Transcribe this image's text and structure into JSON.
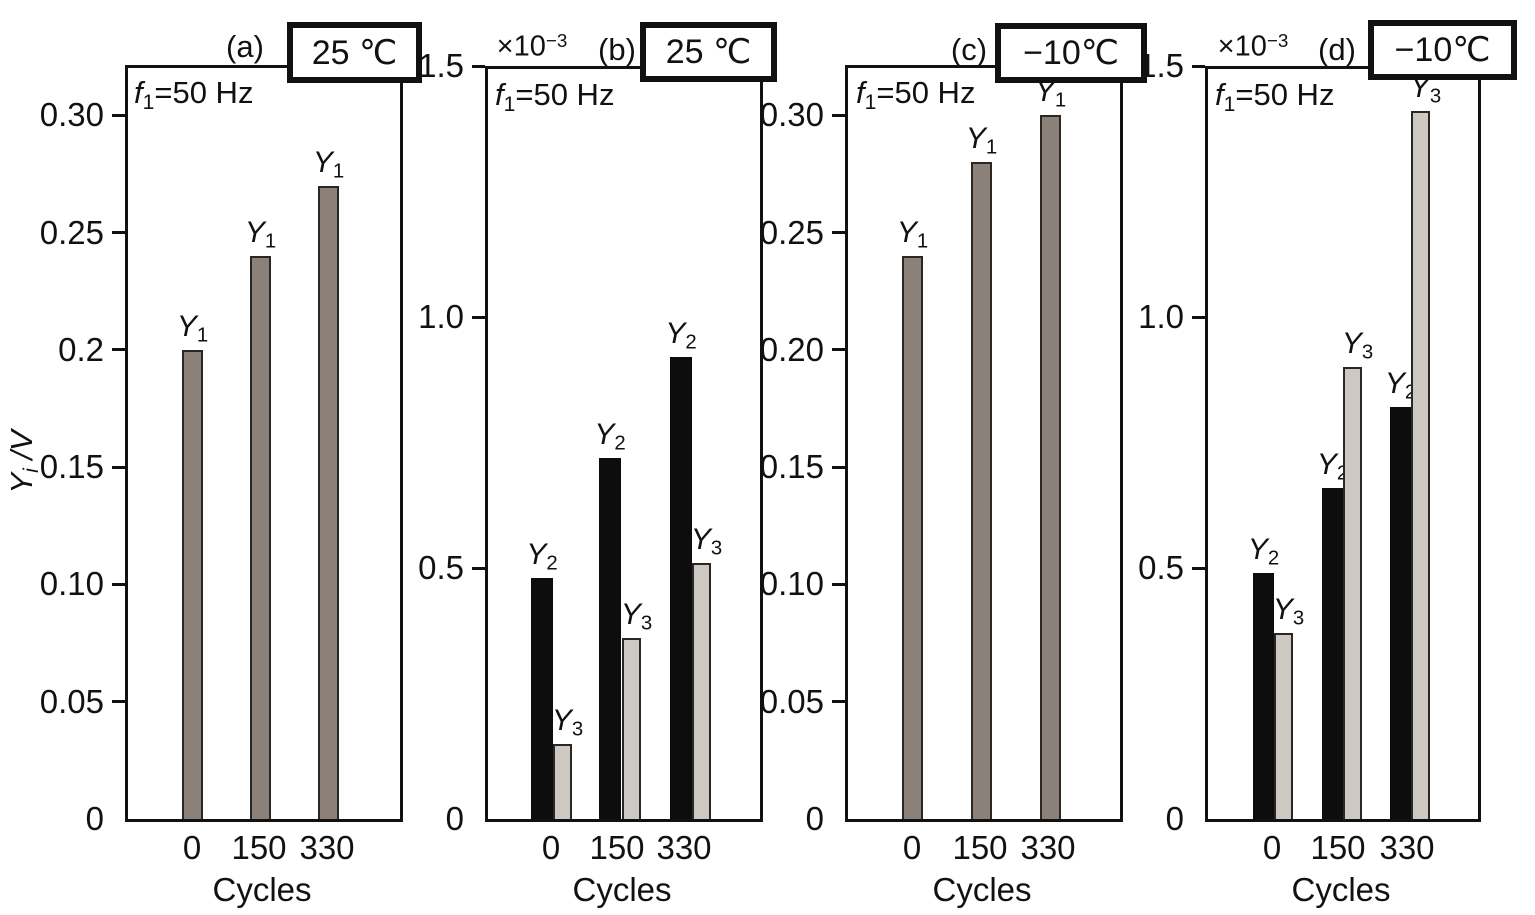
{
  "colors": {
    "axis": "#111111",
    "text": "#111111",
    "bar_gray": "#8B8178",
    "bar_black": "#0D0D0D",
    "bar_lightgray": "#CDC8C2",
    "bar_outline": "#2A2622",
    "background": "#FFFFFF"
  },
  "chart_data": [
    {
      "type": "bar",
      "panel_letter": "(a)",
      "temperature_label": "25 ℃",
      "scale_note": null,
      "frequency_note": {
        "sym": "f",
        "sub": "1",
        "rest": "=50 Hz"
      },
      "ylabel": {
        "base": "Y",
        "sub": "i",
        "rest": " /V"
      },
      "xlabel": "Cycles",
      "categories": [
        "0",
        "150",
        "330"
      ],
      "ytick_labels": [
        "0.30",
        "0.25",
        "0.2",
        "0.15",
        "0.10",
        "0.05",
        "0"
      ],
      "ytick_values": [
        0.3,
        0.25,
        0.2,
        0.15,
        0.1,
        0.05,
        0
      ],
      "ylim": [
        0,
        0.3215
      ],
      "grid": false,
      "series": [
        {
          "name": "Y1",
          "label": {
            "base": "Y",
            "sub": "1"
          },
          "color_key": "bar_gray",
          "values": [
            0.2,
            0.24,
            0.27
          ]
        }
      ]
    },
    {
      "type": "bar",
      "panel_letter": "(b)",
      "temperature_label": "25 ℃",
      "scale_note": {
        "base": "×10",
        "exp": "−3"
      },
      "frequency_note": {
        "sym": "f",
        "sub": "1",
        "rest": "=50 Hz"
      },
      "ylabel": null,
      "xlabel": "Cycles",
      "categories": [
        "0",
        "150",
        "330"
      ],
      "ytick_labels": [
        "1.5",
        "1.0",
        "0.5",
        "0"
      ],
      "ytick_values": [
        1.5,
        1.0,
        0.5,
        0
      ],
      "ylim": [
        0,
        1.5
      ],
      "grid": false,
      "series": [
        {
          "name": "Y2",
          "label": {
            "base": "Y",
            "sub": "2"
          },
          "color_key": "bar_black",
          "values": [
            0.48,
            0.72,
            0.92
          ]
        },
        {
          "name": "Y3",
          "label": {
            "base": "Y",
            "sub": "3"
          },
          "color_key": "bar_lightgray",
          "values": [
            0.15,
            0.36,
            0.51
          ]
        }
      ]
    },
    {
      "type": "bar",
      "panel_letter": "(c)",
      "temperature_label": "−10℃",
      "scale_note": null,
      "frequency_note": {
        "sym": "f",
        "sub": "1",
        "rest": "=50 Hz"
      },
      "ylabel": null,
      "xlabel": "Cycles",
      "categories": [
        "0",
        "150",
        "330"
      ],
      "ytick_labels": [
        "0.30",
        "0.25",
        "0.20",
        "0.15",
        "0.10",
        "0.05",
        "0"
      ],
      "ytick_values": [
        0.3,
        0.25,
        0.2,
        0.15,
        0.1,
        0.05,
        0
      ],
      "ylim": [
        0,
        0.3215
      ],
      "grid": false,
      "series": [
        {
          "name": "Y1",
          "label": {
            "base": "Y",
            "sub": "1"
          },
          "color_key": "bar_gray",
          "values": [
            0.24,
            0.28,
            0.3
          ]
        }
      ]
    },
    {
      "type": "bar",
      "panel_letter": "(d)",
      "temperature_label": "−10℃",
      "scale_note": {
        "base": "×10",
        "exp": "−3"
      },
      "frequency_note": {
        "sym": "f",
        "sub": "1",
        "rest": "=50 Hz"
      },
      "ylabel": null,
      "xlabel": "Cycles",
      "categories": [
        "0",
        "150",
        "330"
      ],
      "ytick_labels": [
        "1.5",
        "1.0",
        "0.5",
        "0"
      ],
      "ytick_values": [
        1.5,
        1.0,
        0.5,
        0
      ],
      "ylim": [
        0,
        1.5
      ],
      "grid": false,
      "series": [
        {
          "name": "Y2",
          "label": {
            "base": "Y",
            "sub": "2"
          },
          "color_key": "bar_black",
          "values": [
            0.49,
            0.66,
            0.82
          ]
        },
        {
          "name": "Y3",
          "label": {
            "base": "Y",
            "sub": "3"
          },
          "color_key": "bar_lightgray",
          "values": [
            0.37,
            0.9,
            1.41
          ]
        }
      ]
    }
  ]
}
